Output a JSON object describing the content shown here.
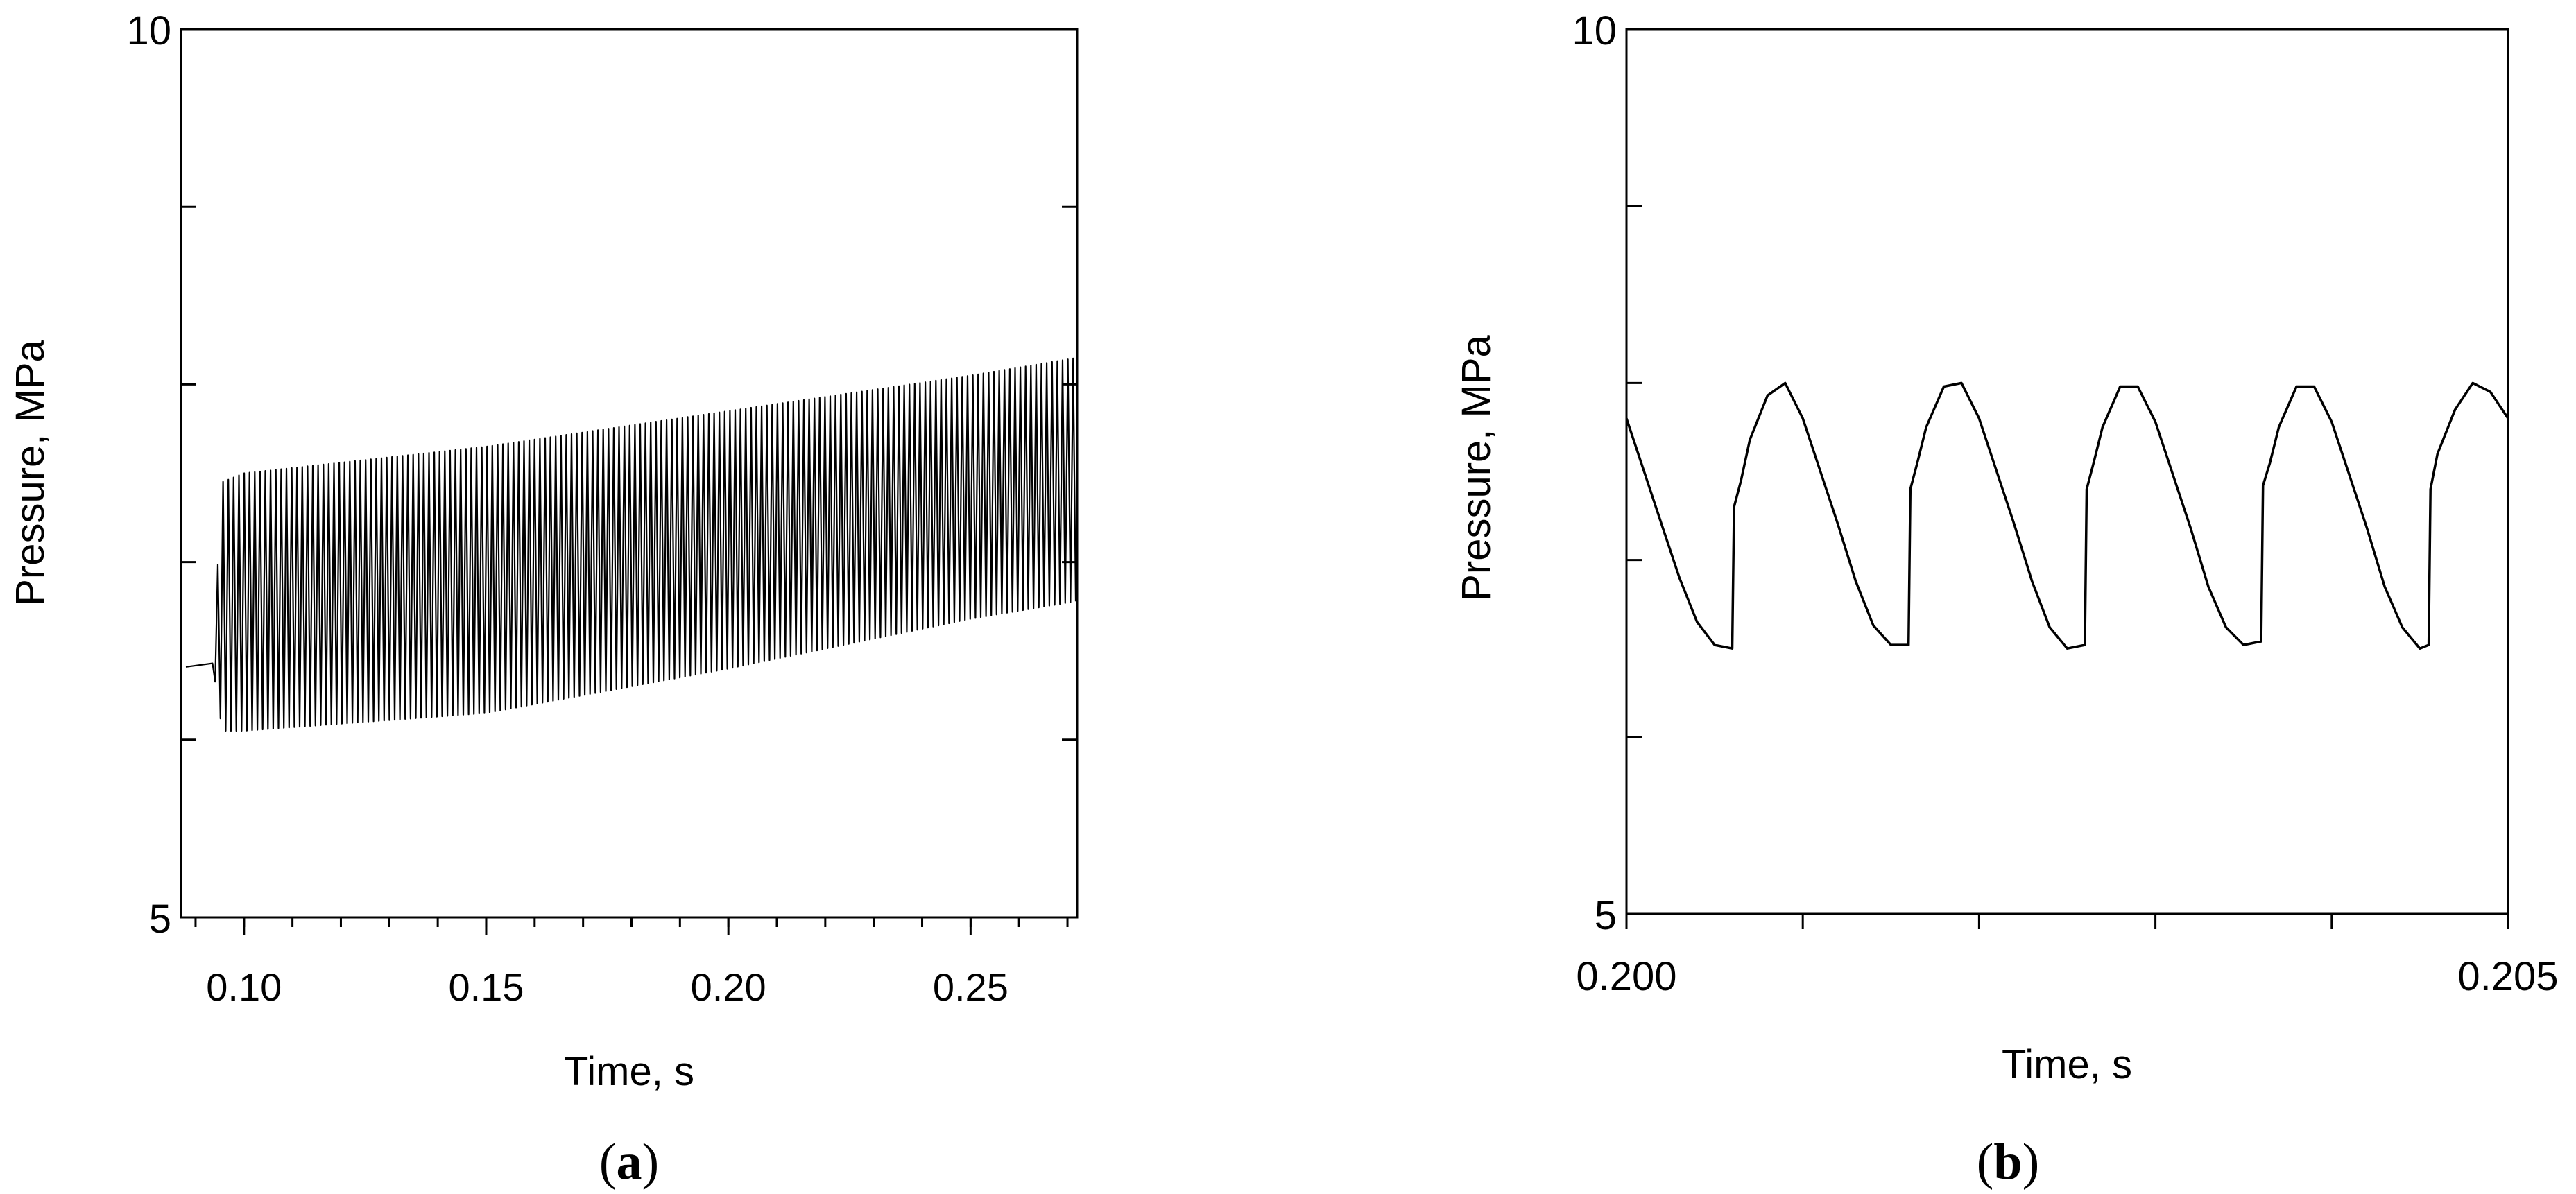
{
  "chart_data": [
    {
      "type": "line",
      "panel_label": "a",
      "xlabel": "Time, s",
      "ylabel": "Pressure, MPa",
      "xlim": [
        0.087,
        0.272
      ],
      "ylim": [
        5,
        10
      ],
      "x_ticks_major": [
        0.1,
        0.15,
        0.2,
        0.25
      ],
      "x_tick_labels": [
        "0.10",
        "0.15",
        "0.20",
        "0.25"
      ],
      "x_ticks_minor_step": 0.01,
      "y_ticks": [
        5,
        6,
        7,
        8,
        9,
        10
      ],
      "y_tick_labels": [
        {
          "value": 5,
          "label": "5"
        },
        {
          "value": 10,
          "label": "10"
        }
      ],
      "series": [
        {
          "description_values": {
            "baseline_start": [
              0.088,
              6.41
            ],
            "oscillation_onset_x": 0.0935,
            "upper_envelope": [
              [
                0.0955,
                7.45
              ],
              [
                0.1,
                7.5
              ],
              [
                0.15,
                7.65
              ],
              [
                0.2,
                7.85
              ],
              [
                0.25,
                8.05
              ],
              [
                0.272,
                8.15
              ]
            ],
            "lower_envelope": [
              [
                0.0955,
                6.05
              ],
              [
                0.1,
                6.05
              ],
              [
                0.15,
                6.15
              ],
              [
                0.2,
                6.4
              ],
              [
                0.25,
                6.68
              ],
              [
                0.272,
                6.78
              ]
            ],
            "oscillation_period_s": 0.00109
          }
        }
      ],
      "grid": false
    },
    {
      "type": "line",
      "panel_label": "b",
      "xlabel": "Time, s",
      "ylabel": "Pressure, MPa",
      "xlim": [
        0.2,
        0.205
      ],
      "ylim": [
        5,
        10
      ],
      "x_ticks_major": [
        0.2,
        0.201,
        0.202,
        0.203,
        0.204,
        0.205
      ],
      "x_tick_labels": [
        {
          "value": 0.2,
          "label": "0.200"
        },
        {
          "value": 0.205,
          "label": "0.205"
        }
      ],
      "y_ticks": [
        5,
        6,
        7,
        8,
        9,
        10
      ],
      "y_tick_labels": [
        {
          "value": 5,
          "label": "5"
        },
        {
          "value": 10,
          "label": "10"
        }
      ],
      "series": [
        {
          "points": [
            [
              0.2,
              7.8
            ],
            [
              0.2001,
              7.5
            ],
            [
              0.2002,
              7.2
            ],
            [
              0.2003,
              6.9
            ],
            [
              0.2004,
              6.65
            ],
            [
              0.2005,
              6.52
            ],
            [
              0.2006,
              6.5
            ],
            [
              0.20061,
              7.3
            ],
            [
              0.20065,
              7.45
            ],
            [
              0.2007,
              7.68
            ],
            [
              0.2008,
              7.93
            ],
            [
              0.2009,
              8.0
            ],
            [
              0.201,
              7.8
            ],
            [
              0.2011,
              7.5
            ],
            [
              0.2012,
              7.2
            ],
            [
              0.2013,
              6.88
            ],
            [
              0.2014,
              6.63
            ],
            [
              0.2015,
              6.52
            ],
            [
              0.2016,
              6.52
            ],
            [
              0.20161,
              7.4
            ],
            [
              0.20165,
              7.55
            ],
            [
              0.2017,
              7.75
            ],
            [
              0.2018,
              7.98
            ],
            [
              0.2019,
              8.0
            ],
            [
              0.202,
              7.8
            ],
            [
              0.2021,
              7.5
            ],
            [
              0.2022,
              7.2
            ],
            [
              0.2023,
              6.88
            ],
            [
              0.2024,
              6.62
            ],
            [
              0.2025,
              6.5
            ],
            [
              0.2026,
              6.52
            ],
            [
              0.20261,
              7.4
            ],
            [
              0.20265,
              7.55
            ],
            [
              0.2027,
              7.75
            ],
            [
              0.2028,
              7.98
            ],
            [
              0.2029,
              7.98
            ],
            [
              0.203,
              7.78
            ],
            [
              0.2031,
              7.48
            ],
            [
              0.2032,
              7.18
            ],
            [
              0.2033,
              6.85
            ],
            [
              0.2034,
              6.62
            ],
            [
              0.2035,
              6.52
            ],
            [
              0.2036,
              6.54
            ],
            [
              0.20361,
              7.42
            ],
            [
              0.20365,
              7.55
            ],
            [
              0.2037,
              7.75
            ],
            [
              0.2038,
              7.98
            ],
            [
              0.2039,
              7.98
            ],
            [
              0.204,
              7.78
            ],
            [
              0.2041,
              7.48
            ],
            [
              0.2042,
              7.18
            ],
            [
              0.2043,
              6.85
            ],
            [
              0.2044,
              6.62
            ],
            [
              0.2045,
              6.5
            ],
            [
              0.20455,
              6.52
            ],
            [
              0.20456,
              7.4
            ],
            [
              0.2046,
              7.6
            ],
            [
              0.2047,
              7.85
            ],
            [
              0.2048,
              8.0
            ],
            [
              0.2049,
              7.95
            ],
            [
              0.205,
              7.8
            ]
          ]
        }
      ],
      "grid": false
    }
  ]
}
